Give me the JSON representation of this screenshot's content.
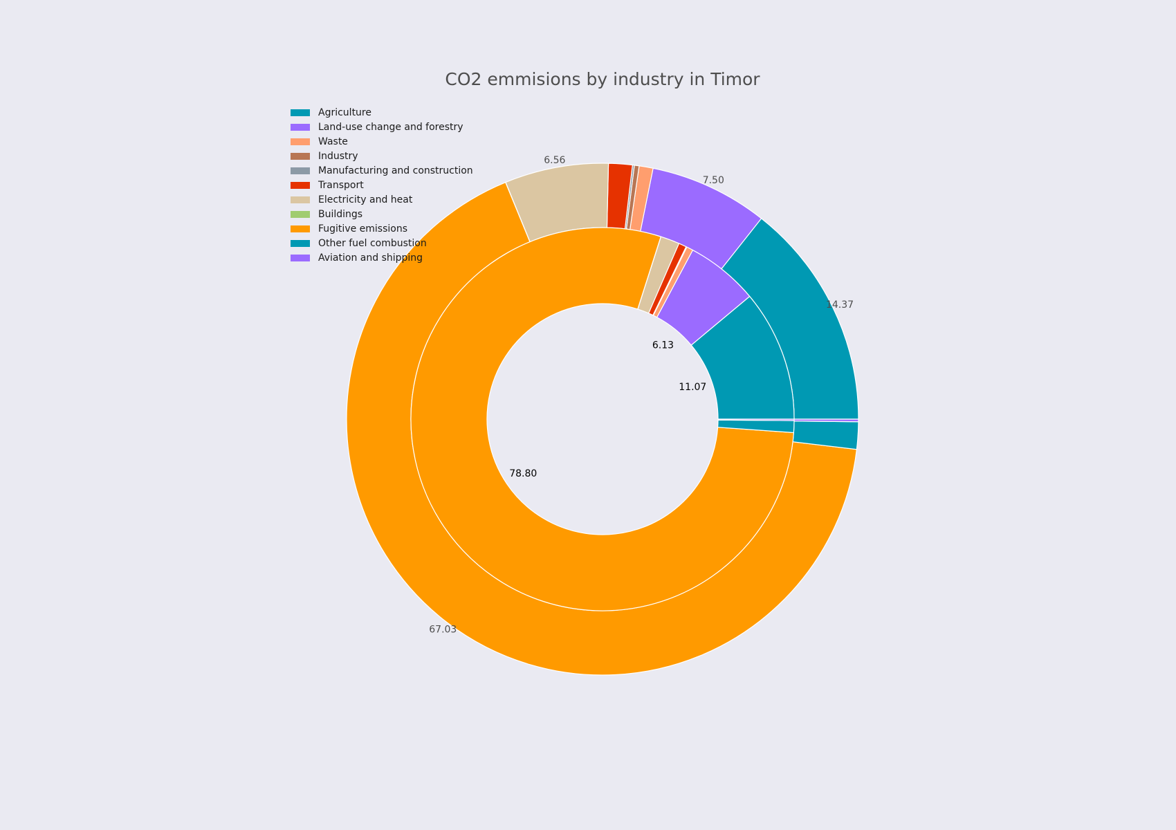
{
  "chart_data": {
    "type": "pie",
    "title": "CO2 emmisions by industry in Timor",
    "legend": {
      "placement": "top-left",
      "entries": [
        {
          "name": "Agriculture",
          "color": "#0099b3"
        },
        {
          "name": "Land-use change and forestry",
          "color": "#9b6bff"
        },
        {
          "name": "Waste",
          "color": "#ff9e6e"
        },
        {
          "name": "Industry",
          "color": "#b87654"
        },
        {
          "name": "Manufacturing and construction",
          "color": "#8c9aa6"
        },
        {
          "name": "Transport",
          "color": "#e63200"
        },
        {
          "name": "Electricity and heat",
          "color": "#dbc6a2"
        },
        {
          "name": "Buildings",
          "color": "#a0cc70"
        },
        {
          "name": "Fugitive emissions",
          "color": "#ff9a00"
        },
        {
          "name": "Other fuel combustion",
          "color": "#0099b3"
        },
        {
          "name": "Aviation and shipping",
          "color": "#9b6bff"
        }
      ]
    },
    "series": [
      {
        "ring": "outer",
        "slices": [
          {
            "name": "Agriculture",
            "value": 14.37,
            "color": "#0099b3",
            "label": "14.37"
          },
          {
            "name": "Land-use change and forestry",
            "value": 7.5,
            "color": "#9b6bff",
            "label": "7.50"
          },
          {
            "name": "Waste",
            "value": 0.88,
            "color": "#ff9e6e",
            "label": ""
          },
          {
            "name": "Industry",
            "value": 0.3,
            "color": "#b87654",
            "label": ""
          },
          {
            "name": "Manufacturing and construction",
            "value": 0.12,
            "color": "#8c9aa6",
            "label": ""
          },
          {
            "name": "Transport",
            "value": 1.5,
            "color": "#e63200",
            "label": ""
          },
          {
            "name": "Electricity and heat",
            "value": 6.56,
            "color": "#dbc6a2",
            "label": "6.56"
          },
          {
            "name": "Buildings",
            "value": 0.01,
            "color": "#a0cc70",
            "label": ""
          },
          {
            "name": "Fugitive emissions",
            "value": 67.03,
            "color": "#ff9a00",
            "label": "67.03"
          },
          {
            "name": "Other fuel combustion",
            "value": 1.73,
            "color": "#0099b3",
            "label": ""
          },
          {
            "name": "Aviation and shipping",
            "value": 0.16,
            "color": "#9b6bff",
            "label": ""
          }
        ]
      },
      {
        "ring": "inner",
        "slices": [
          {
            "name": "Agriculture",
            "value": 11.07,
            "color": "#0099b3",
            "label": "11.07"
          },
          {
            "name": "Land-use change and forestry",
            "value": 6.13,
            "color": "#9b6bff",
            "label": "6.13"
          },
          {
            "name": "Waste",
            "value": 0.55,
            "color": "#ff9e6e",
            "label": ""
          },
          {
            "name": "Industry",
            "value": 0.05,
            "color": "#b87654",
            "label": ""
          },
          {
            "name": "Manufacturing and construction",
            "value": 0.02,
            "color": "#8c9aa6",
            "label": ""
          },
          {
            "name": "Transport",
            "value": 0.65,
            "color": "#e63200",
            "label": ""
          },
          {
            "name": "Electricity and heat",
            "value": 1.6,
            "color": "#dbc6a2",
            "label": ""
          },
          {
            "name": "Buildings",
            "value": 0.01,
            "color": "#a0cc70",
            "label": ""
          },
          {
            "name": "Fugitive emissions",
            "value": 78.8,
            "color": "#ff9a00",
            "label": "78.80"
          },
          {
            "name": "Other fuel combustion",
            "value": 1.0,
            "color": "#0099b3",
            "label": ""
          },
          {
            "name": "Aviation and shipping",
            "value": 0.12,
            "color": "#9b6bff",
            "label": ""
          }
        ]
      }
    ]
  }
}
